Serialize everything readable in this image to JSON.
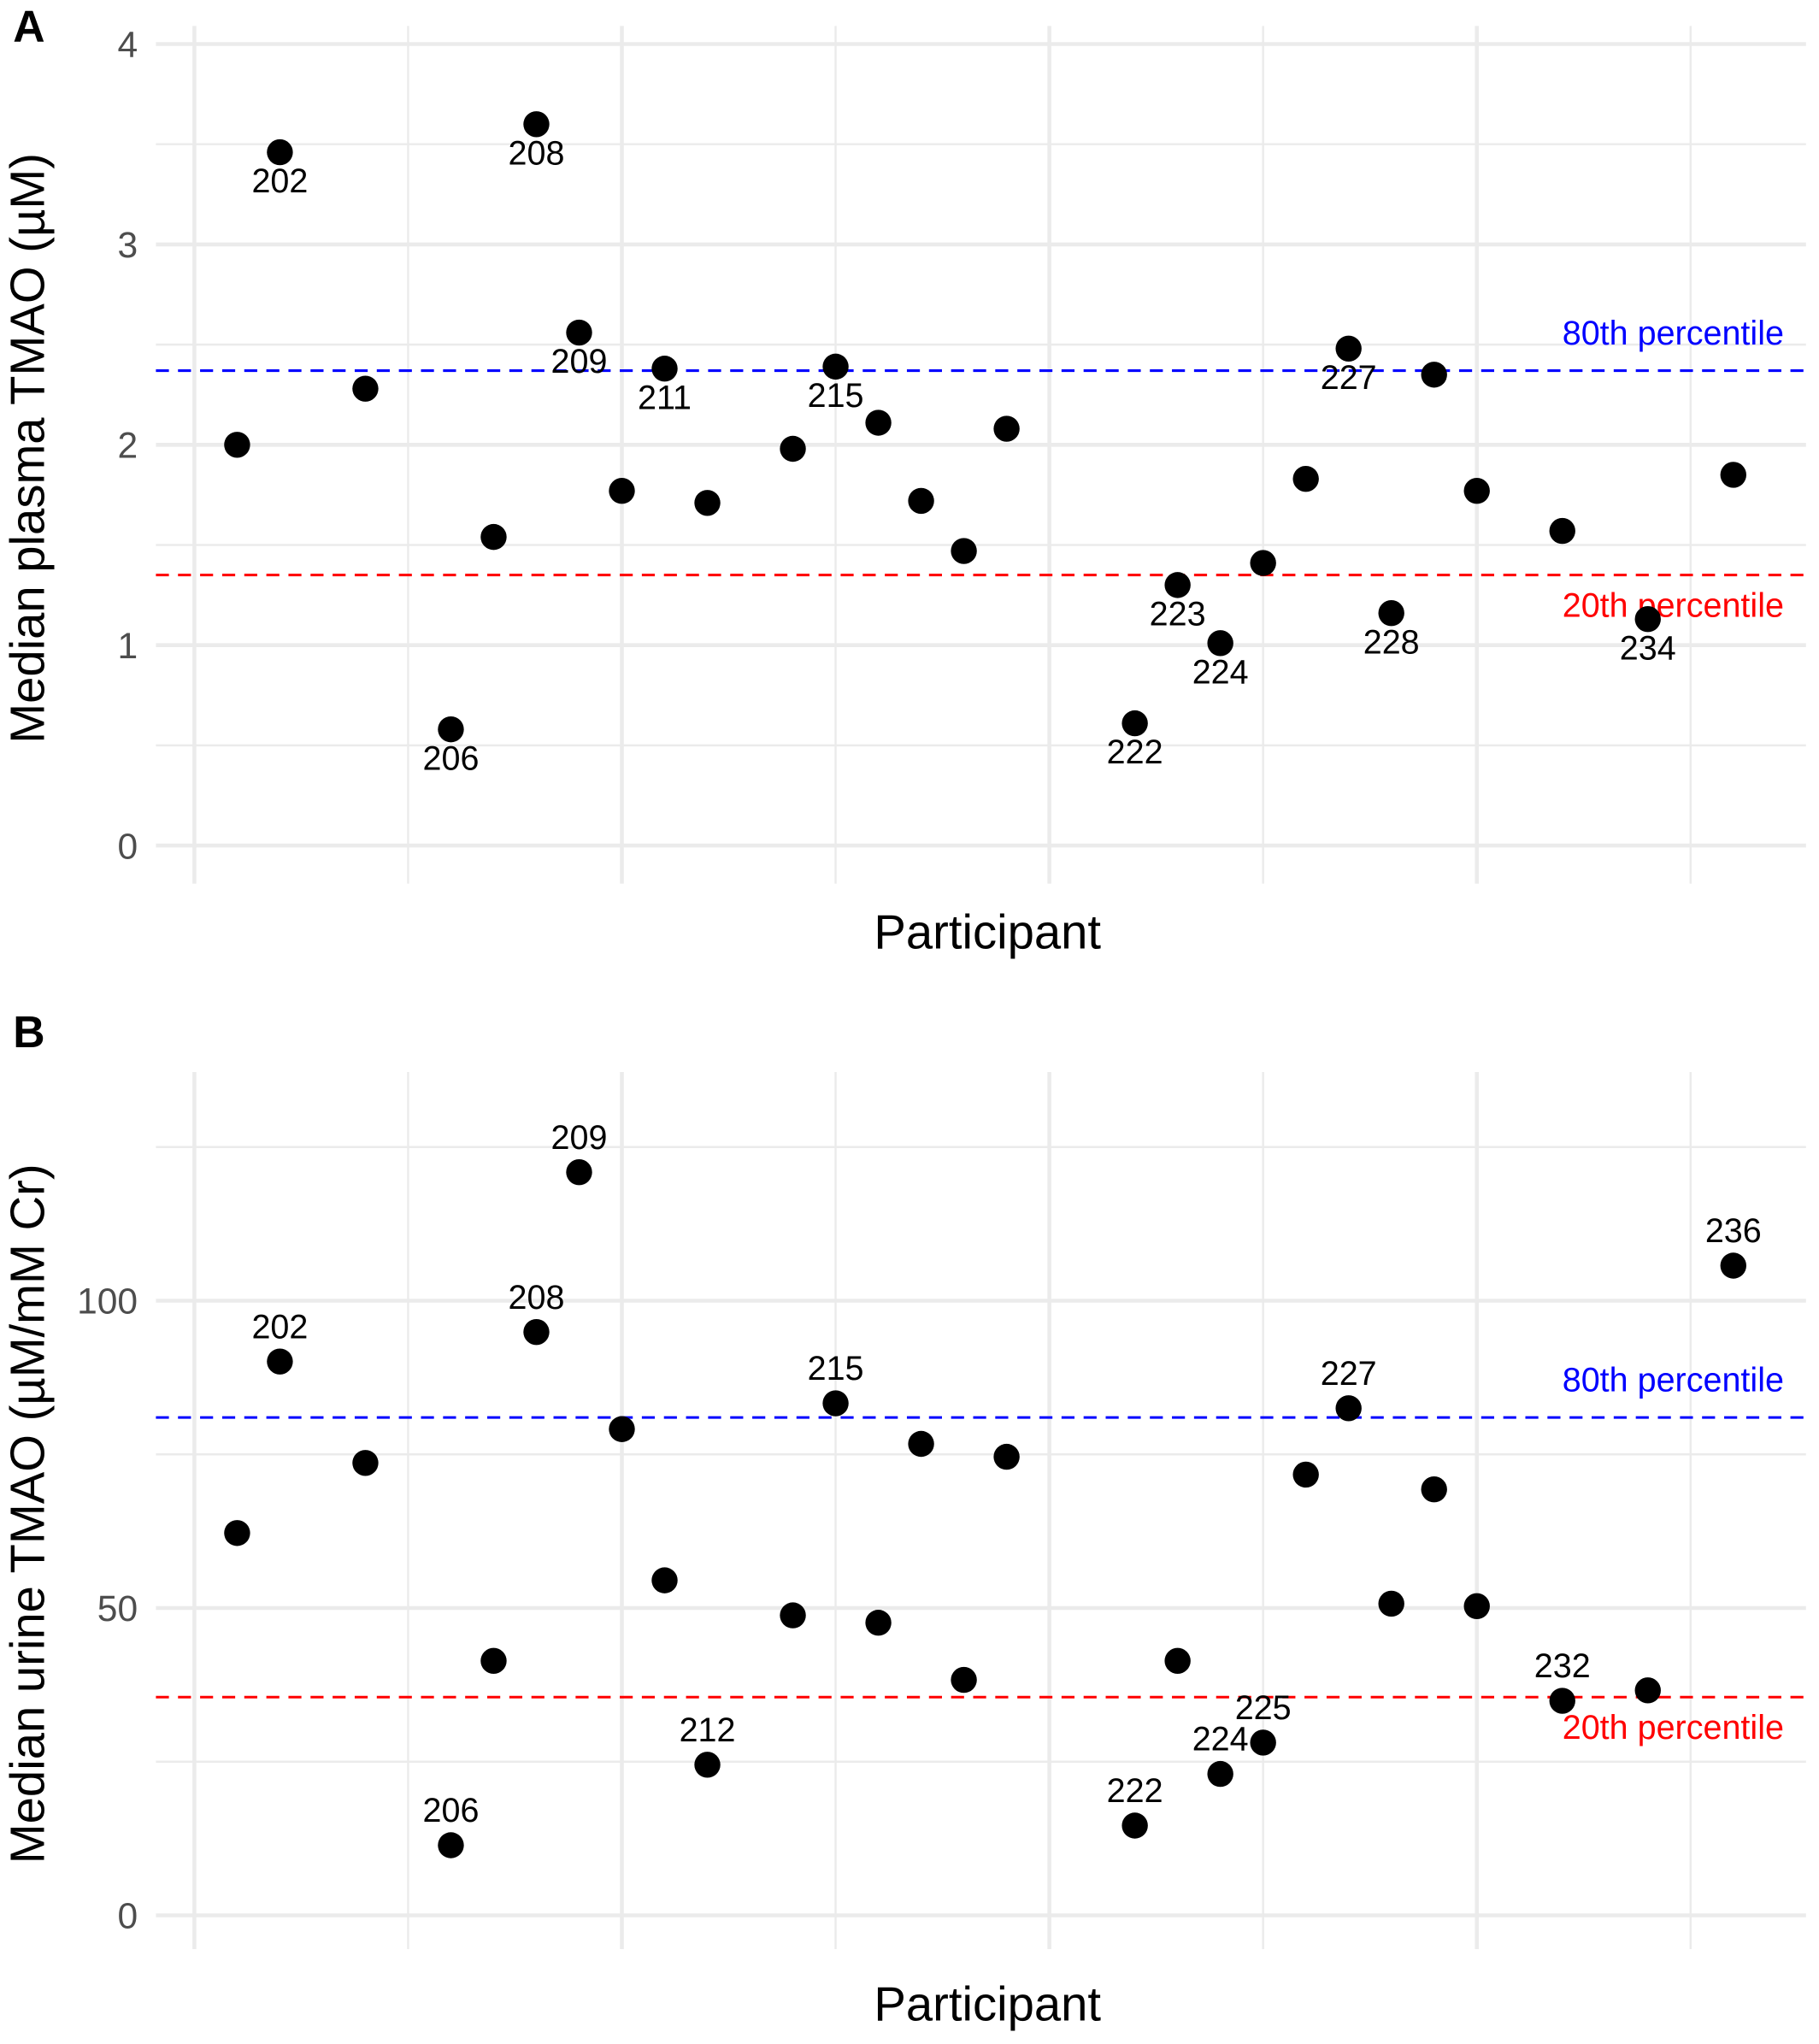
{
  "chart_data": [
    {
      "panel_label": "A",
      "type": "scatter",
      "xlabel": "Participant",
      "ylabel": "Median plasma TMAO (µM)",
      "ylim": [
        -0.19,
        4.09
      ],
      "xlim": [
        199.1,
        237.7
      ],
      "yticks": [
        0,
        1,
        2,
        3,
        4
      ],
      "ytick_labels": [
        "0",
        "1",
        "2",
        "3",
        "4"
      ],
      "grid": true,
      "x_tick_labels_shown": false,
      "points": [
        {
          "x": 201,
          "y": 2.0,
          "label": ""
        },
        {
          "x": 202,
          "y": 3.46,
          "label": "202"
        },
        {
          "x": 204,
          "y": 2.28,
          "label": ""
        },
        {
          "x": 206,
          "y": 0.58,
          "label": "206"
        },
        {
          "x": 207,
          "y": 1.54,
          "label": ""
        },
        {
          "x": 208,
          "y": 3.6,
          "label": "208"
        },
        {
          "x": 209,
          "y": 2.56,
          "label": "209"
        },
        {
          "x": 210,
          "y": 1.77,
          "label": ""
        },
        {
          "x": 211,
          "y": 2.38,
          "label": "211"
        },
        {
          "x": 212,
          "y": 1.71,
          "label": ""
        },
        {
          "x": 214,
          "y": 1.98,
          "label": ""
        },
        {
          "x": 215,
          "y": 2.39,
          "label": "215"
        },
        {
          "x": 216,
          "y": 2.11,
          "label": ""
        },
        {
          "x": 217,
          "y": 1.72,
          "label": ""
        },
        {
          "x": 218,
          "y": 1.47,
          "label": ""
        },
        {
          "x": 219,
          "y": 2.08,
          "label": ""
        },
        {
          "x": 222,
          "y": 0.61,
          "label": "222"
        },
        {
          "x": 223,
          "y": 1.3,
          "label": "223"
        },
        {
          "x": 224,
          "y": 1.01,
          "label": "224"
        },
        {
          "x": 225,
          "y": 1.41,
          "label": ""
        },
        {
          "x": 226,
          "y": 1.83,
          "label": ""
        },
        {
          "x": 227,
          "y": 2.48,
          "label": "227"
        },
        {
          "x": 228,
          "y": 1.16,
          "label": "228"
        },
        {
          "x": 229,
          "y": 2.35,
          "label": ""
        },
        {
          "x": 230,
          "y": 1.77,
          "label": ""
        },
        {
          "x": 232,
          "y": 1.57,
          "label": ""
        },
        {
          "x": 234,
          "y": 1.13,
          "label": "234"
        },
        {
          "x": 236,
          "y": 1.85,
          "label": ""
        }
      ],
      "label_position": "below",
      "reference_lines": [
        {
          "label": "80th percentile",
          "y": 2.37,
          "color": "#0000ff",
          "style": "dashed",
          "text_side": "above"
        },
        {
          "label": "20th percentile",
          "y": 1.35,
          "color": "#ff0000",
          "style": "dashed",
          "text_side": "below"
        }
      ]
    },
    {
      "panel_label": "B",
      "type": "scatter",
      "xlabel": "Participant",
      "ylabel": "Median urine TMAO (µM/mM Cr)",
      "ylim": [
        -5.5,
        137.2
      ],
      "xlim": [
        199.1,
        237.7
      ],
      "yticks": [
        0,
        50,
        100
      ],
      "ytick_labels": [
        "0",
        "50",
        "100"
      ],
      "grid": true,
      "x_tick_labels_shown": false,
      "points": [
        {
          "x": 201,
          "y": 62.2,
          "label": ""
        },
        {
          "x": 202,
          "y": 90.1,
          "label": "202"
        },
        {
          "x": 204,
          "y": 73.6,
          "label": ""
        },
        {
          "x": 206,
          "y": 11.4,
          "label": "206"
        },
        {
          "x": 207,
          "y": 41.4,
          "label": ""
        },
        {
          "x": 208,
          "y": 94.9,
          "label": "208"
        },
        {
          "x": 209,
          "y": 120.9,
          "label": "209"
        },
        {
          "x": 210,
          "y": 79.1,
          "label": ""
        },
        {
          "x": 211,
          "y": 54.5,
          "label": ""
        },
        {
          "x": 212,
          "y": 24.5,
          "label": "212"
        },
        {
          "x": 214,
          "y": 48.8,
          "label": ""
        },
        {
          "x": 215,
          "y": 83.3,
          "label": "215"
        },
        {
          "x": 216,
          "y": 47.6,
          "label": ""
        },
        {
          "x": 217,
          "y": 76.7,
          "label": ""
        },
        {
          "x": 218,
          "y": 38.3,
          "label": ""
        },
        {
          "x": 219,
          "y": 74.6,
          "label": ""
        },
        {
          "x": 222,
          "y": 14.6,
          "label": "222"
        },
        {
          "x": 223,
          "y": 41.4,
          "label": ""
        },
        {
          "x": 224,
          "y": 23.0,
          "label": "224"
        },
        {
          "x": 225,
          "y": 28.1,
          "label": "225"
        },
        {
          "x": 226,
          "y": 71.7,
          "label": ""
        },
        {
          "x": 227,
          "y": 82.5,
          "label": "227"
        },
        {
          "x": 228,
          "y": 50.7,
          "label": ""
        },
        {
          "x": 229,
          "y": 69.3,
          "label": ""
        },
        {
          "x": 230,
          "y": 50.3,
          "label": ""
        },
        {
          "x": 232,
          "y": 34.9,
          "label": "232"
        },
        {
          "x": 234,
          "y": 36.6,
          "label": ""
        },
        {
          "x": 236,
          "y": 105.7,
          "label": "236"
        }
      ],
      "label_position": "above",
      "reference_lines": [
        {
          "label": "80th percentile",
          "y": 81.0,
          "color": "#0000ff",
          "style": "dashed",
          "text_side": "above"
        },
        {
          "label": "20th percentile",
          "y": 35.5,
          "color": "#ff0000",
          "style": "dashed",
          "text_side": "below"
        }
      ]
    }
  ]
}
